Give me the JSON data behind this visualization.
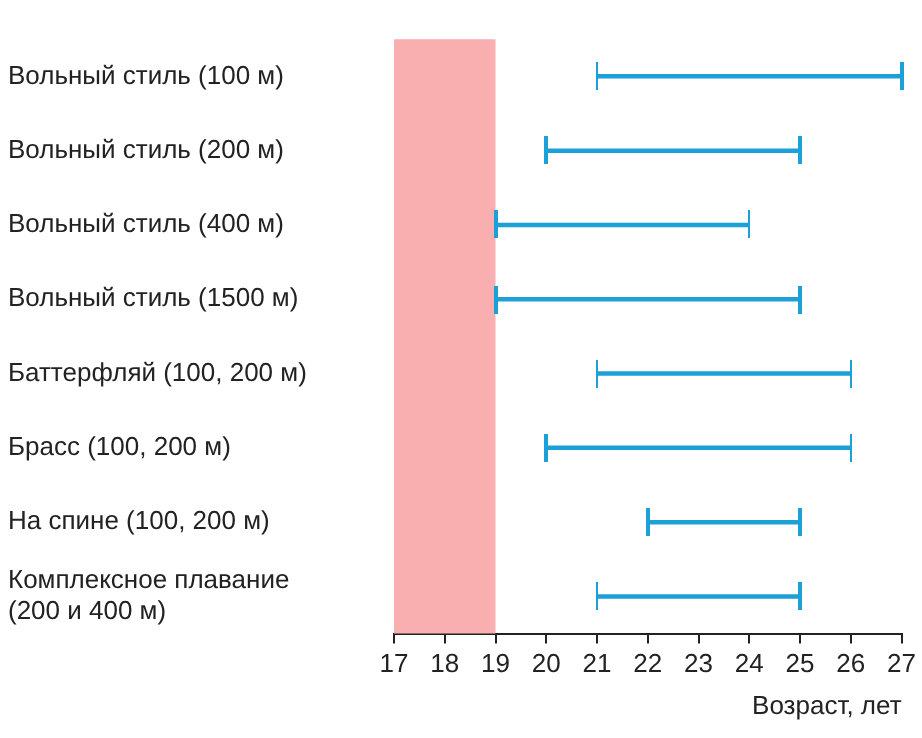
{
  "chart_data": {
    "type": "bar",
    "orientation": "horizontal",
    "xlabel": "Возраст, лет",
    "categories": [
      "Вольный стиль (100 м)",
      "Вольный стиль (200 м)",
      "Вольный стиль (400 м)",
      "Вольный стиль (1500 м)",
      "Баттерфляй (100, 200 м)",
      "Брасс (100, 200 м)",
      "На спине (100, 200 м)",
      "Комплексное плавание (200 и 400 м)"
    ],
    "base": [
      21,
      20,
      19,
      19,
      21,
      20,
      22,
      21
    ],
    "values": [
      6,
      5,
      5,
      6,
      5,
      6,
      3,
      4
    ],
    "color": "#1ba1d8",
    "xlim": [
      17,
      27
    ],
    "xticks": [
      17,
      18,
      19,
      20,
      21,
      22,
      23,
      24,
      25,
      26,
      27
    ],
    "bands": [
      {
        "axis": "x",
        "from": 17,
        "to": 19,
        "color": "#f9aeb0"
      }
    ],
    "grid": false,
    "legend": false
  }
}
